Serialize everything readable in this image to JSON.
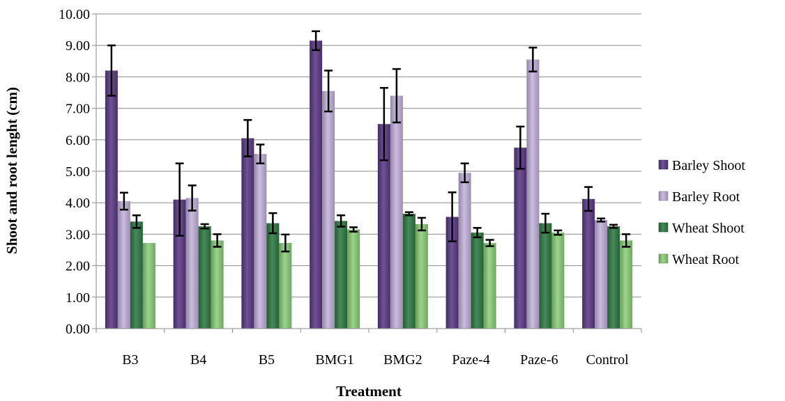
{
  "chart_data": {
    "type": "bar",
    "title": "",
    "xlabel": "Treatment",
    "ylabel": "Shoot and root lenght (cm)",
    "ylim": [
      0,
      10
    ],
    "y_ticks": [
      "0.00",
      "1.00",
      "2.00",
      "3.00",
      "4.00",
      "5.00",
      "6.00",
      "7.00",
      "8.00",
      "9.00",
      "10.00"
    ],
    "grid": true,
    "legend_position": "right",
    "categories": [
      "B3",
      "B4",
      "B5",
      "BMG1",
      "BMG2",
      "Paze-4",
      "Paze-6",
      "Control"
    ],
    "series": [
      {
        "name": "Barley Shoot",
        "color": "#5b3a86",
        "values": [
          8.2,
          4.1,
          6.05,
          9.15,
          6.5,
          3.55,
          5.75,
          4.12
        ],
        "errors": [
          0.8,
          1.15,
          0.58,
          0.3,
          1.15,
          0.78,
          0.67,
          0.38
        ]
      },
      {
        "name": "Barley Root",
        "color": "#c4b3dc",
        "values": [
          4.05,
          4.15,
          5.55,
          7.55,
          7.4,
          4.95,
          8.55,
          3.45
        ],
        "errors": [
          0.27,
          0.4,
          0.3,
          0.65,
          0.85,
          0.3,
          0.38,
          0.05
        ]
      },
      {
        "name": "Wheat Shoot",
        "color": "#2e7a43",
        "values": [
          3.4,
          3.25,
          3.35,
          3.42,
          3.65,
          3.05,
          3.35,
          3.25
        ],
        "errors": [
          0.2,
          0.07,
          0.32,
          0.18,
          0.05,
          0.15,
          0.3,
          0.05
        ]
      },
      {
        "name": "Wheat Root",
        "color": "#8ccf7a",
        "values": [
          2.72,
          2.8,
          2.72,
          3.15,
          3.32,
          2.72,
          3.05,
          2.8
        ],
        "errors": [
          0.0,
          0.2,
          0.27,
          0.07,
          0.2,
          0.1,
          0.07,
          0.2
        ]
      }
    ]
  }
}
